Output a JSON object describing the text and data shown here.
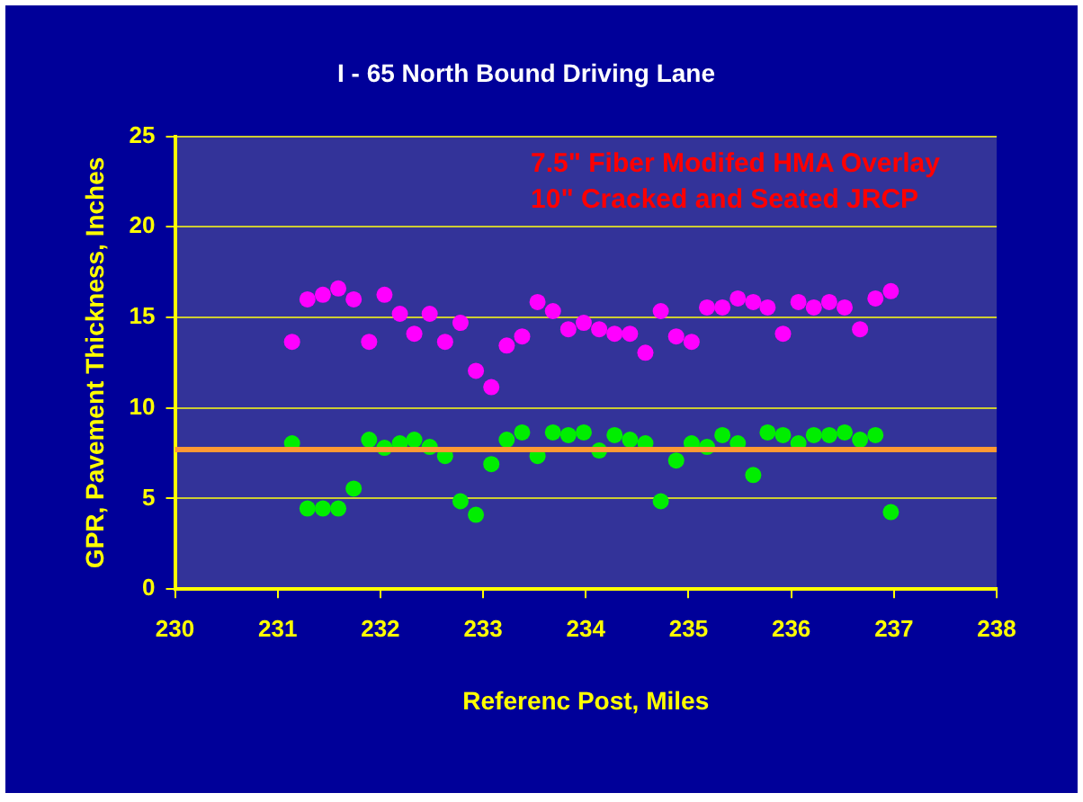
{
  "chart_data": {
    "type": "scatter",
    "title": "I - 65 North Bound Driving Lane",
    "xlabel": "Referenc Post, Miles",
    "ylabel": "GPR, Pavement Thickness, Inches",
    "annotations": [
      "7.5\" Fiber Modifed HMA Overlay",
      "10\" Cracked and Seated JRCP"
    ],
    "x": [
      231.14,
      231.29,
      231.44,
      231.59,
      231.74,
      231.89,
      232.04,
      232.19,
      232.33,
      232.48,
      232.63,
      232.78,
      232.93,
      233.08,
      233.23,
      233.38,
      233.53,
      233.68,
      233.83,
      233.98,
      234.13,
      234.28,
      234.43,
      234.58,
      234.73,
      234.88,
      235.03,
      235.18,
      235.33,
      235.48,
      235.63,
      235.77,
      235.92,
      236.07,
      236.22,
      236.37,
      236.52,
      236.67,
      236.82,
      236.97
    ],
    "series": [
      {
        "color": "#ff00ff",
        "values": [
          13.65,
          16.0,
          16.25,
          16.6,
          16.0,
          13.65,
          16.25,
          15.2,
          14.1,
          15.2,
          13.65,
          14.7,
          12.05,
          11.15,
          13.45,
          13.95,
          15.85,
          15.35,
          14.35,
          14.7,
          14.35,
          14.1,
          14.1,
          13.05,
          15.35,
          13.95,
          13.65,
          15.55,
          15.55,
          16.05,
          15.85,
          15.55,
          14.1,
          15.85,
          15.55,
          15.85,
          15.55,
          14.35,
          16.05,
          16.45
        ]
      },
      {
        "color": "#00ee00",
        "values": [
          8.05,
          4.45,
          4.45,
          4.45,
          5.55,
          8.25,
          7.8,
          8.05,
          8.25,
          7.85,
          7.35,
          4.85,
          4.1,
          6.9,
          8.25,
          8.65,
          7.35,
          8.65,
          8.5,
          8.65,
          7.65,
          8.5,
          8.25,
          8.05,
          4.85,
          7.1,
          8.05,
          7.85,
          8.5,
          8.05,
          6.3,
          8.65,
          8.5,
          8.05,
          8.5,
          8.5,
          8.65,
          8.25,
          8.5,
          4.25
        ]
      }
    ],
    "ref_lines": [
      {
        "axis": "y",
        "value": 7.7,
        "color": "#ff9933"
      }
    ],
    "xlim": [
      230,
      238
    ],
    "xticks": [
      230,
      231,
      232,
      233,
      234,
      235,
      236,
      237,
      238
    ],
    "ylim": [
      0,
      25
    ],
    "yticks": [
      0,
      5,
      10,
      15,
      20,
      25
    ],
    "grid": "y",
    "legend": false,
    "marker": "circle"
  }
}
